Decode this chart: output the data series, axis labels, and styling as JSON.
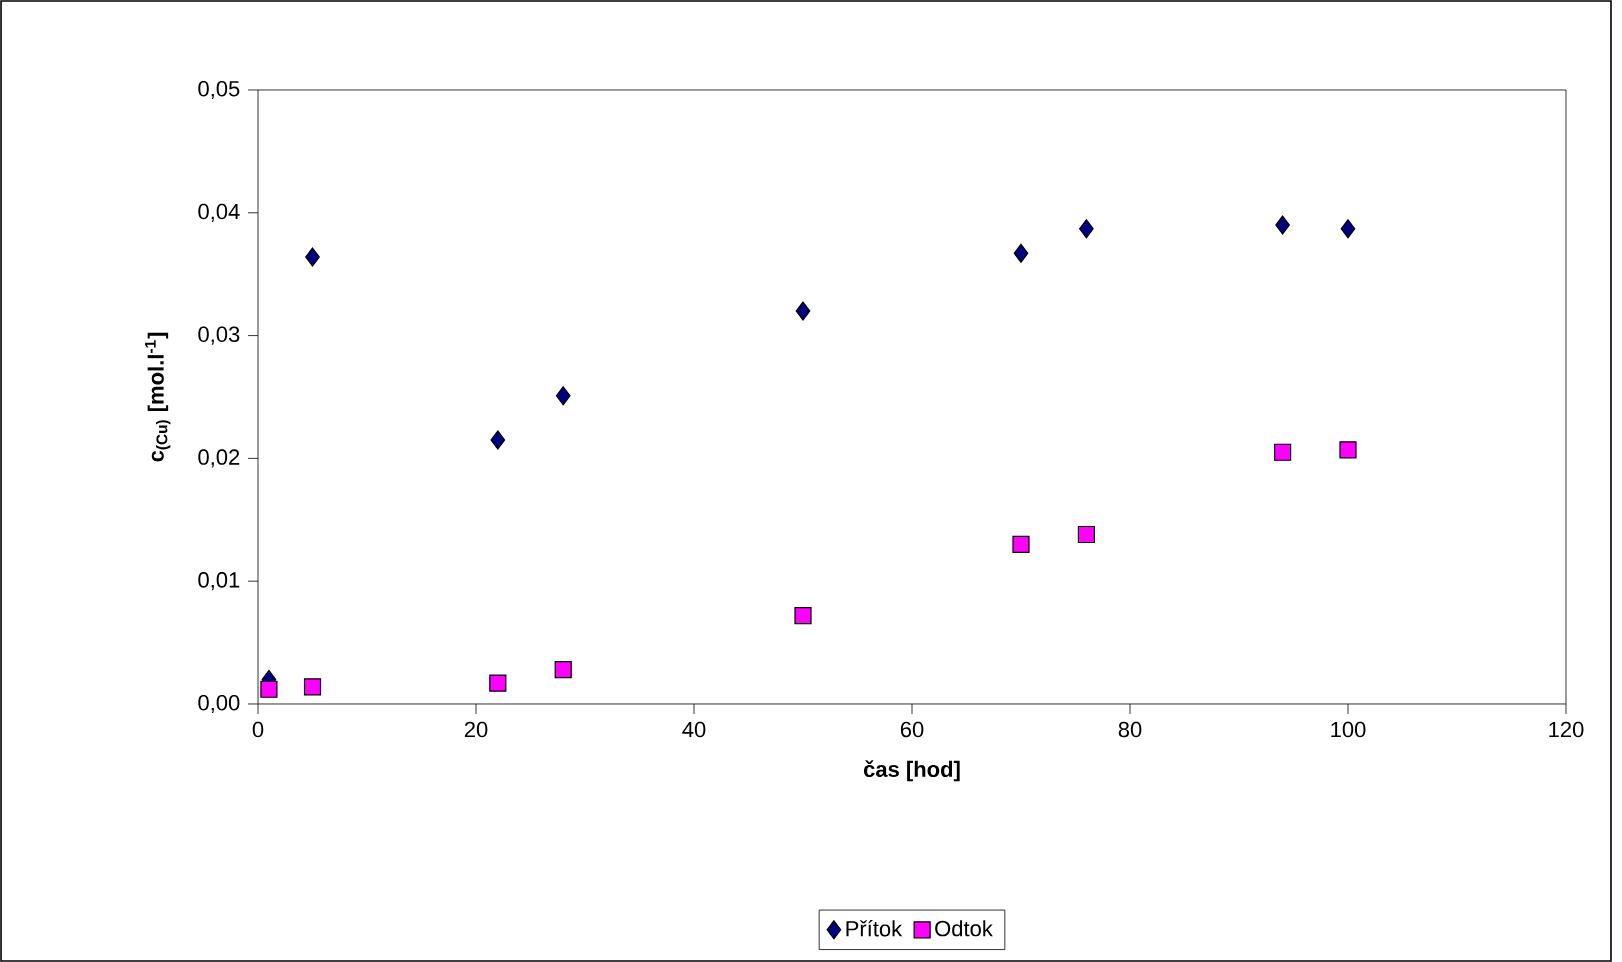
{
  "chart_data": {
    "type": "scatter",
    "xlabel": "**čas [hod]**",
    "ylabel": "**c$_{(Cu)}$ [mol.l$^{-1}$]**",
    "xlim": [
      0,
      120
    ],
    "xticks": [
      0,
      20,
      40,
      60,
      80,
      100,
      120
    ],
    "ylim": [
      0,
      0.05
    ],
    "yticks": [
      {
        "value": 0,
        "label": "0,00"
      },
      {
        "value": 0.01,
        "label": "0,01"
      },
      {
        "value": 0.02,
        "label": "0,02"
      },
      {
        "value": 0.03,
        "label": "0,03"
      },
      {
        "value": 0.04,
        "label": "0,04"
      },
      {
        "value": 0.05,
        "label": "0,05"
      }
    ],
    "grid": false,
    "legend": "bottom",
    "x": [
      1,
      5,
      22,
      28,
      50,
      70,
      76,
      94,
      100
    ],
    "series": [
      {
        "name": "Přítok",
        "color": "#000080",
        "marker": "diamond",
        "values": [
          0.002,
          0.0364,
          0.0215,
          0.0251,
          0.032,
          0.0367,
          0.0387,
          0.039,
          0.0387
        ]
      },
      {
        "name": "Odtok",
        "color": "#ff00ff",
        "marker": "square",
        "values": [
          0.0012,
          0.0014,
          0.0017,
          0.0028,
          0.0072,
          0.013,
          0.0138,
          0.0205,
          0.0207
        ]
      }
    ]
  }
}
